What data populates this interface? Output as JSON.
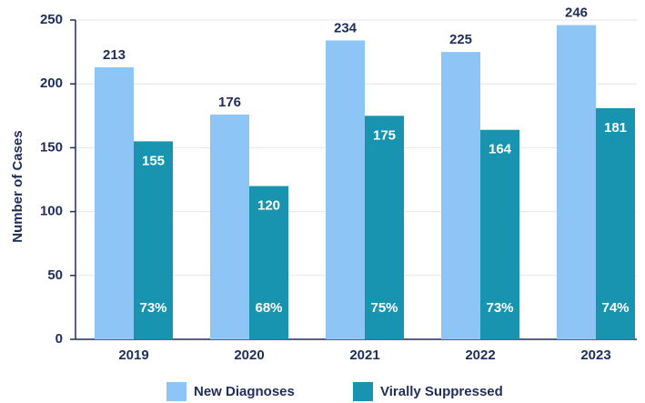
{
  "chart_data": {
    "type": "bar",
    "y_label": "Number of Cases",
    "categories": [
      "2019",
      "2020",
      "2021",
      "2022",
      "2023"
    ],
    "series": [
      {
        "name": "New Diagnoses",
        "color": "#8ec5f7",
        "values": [
          213,
          176,
          234,
          225,
          246
        ]
      },
      {
        "name": "Virally Suppressed",
        "color": "#1994b0",
        "values": [
          155,
          120,
          175,
          164,
          181
        ],
        "percent_labels": [
          "73%",
          "68%",
          "75%",
          "73%",
          "74%"
        ]
      }
    ],
    "ylim": [
      0,
      250
    ],
    "yticks": [
      0,
      50,
      100,
      150,
      200,
      250
    ],
    "grid": true,
    "legend": "bottom"
  }
}
